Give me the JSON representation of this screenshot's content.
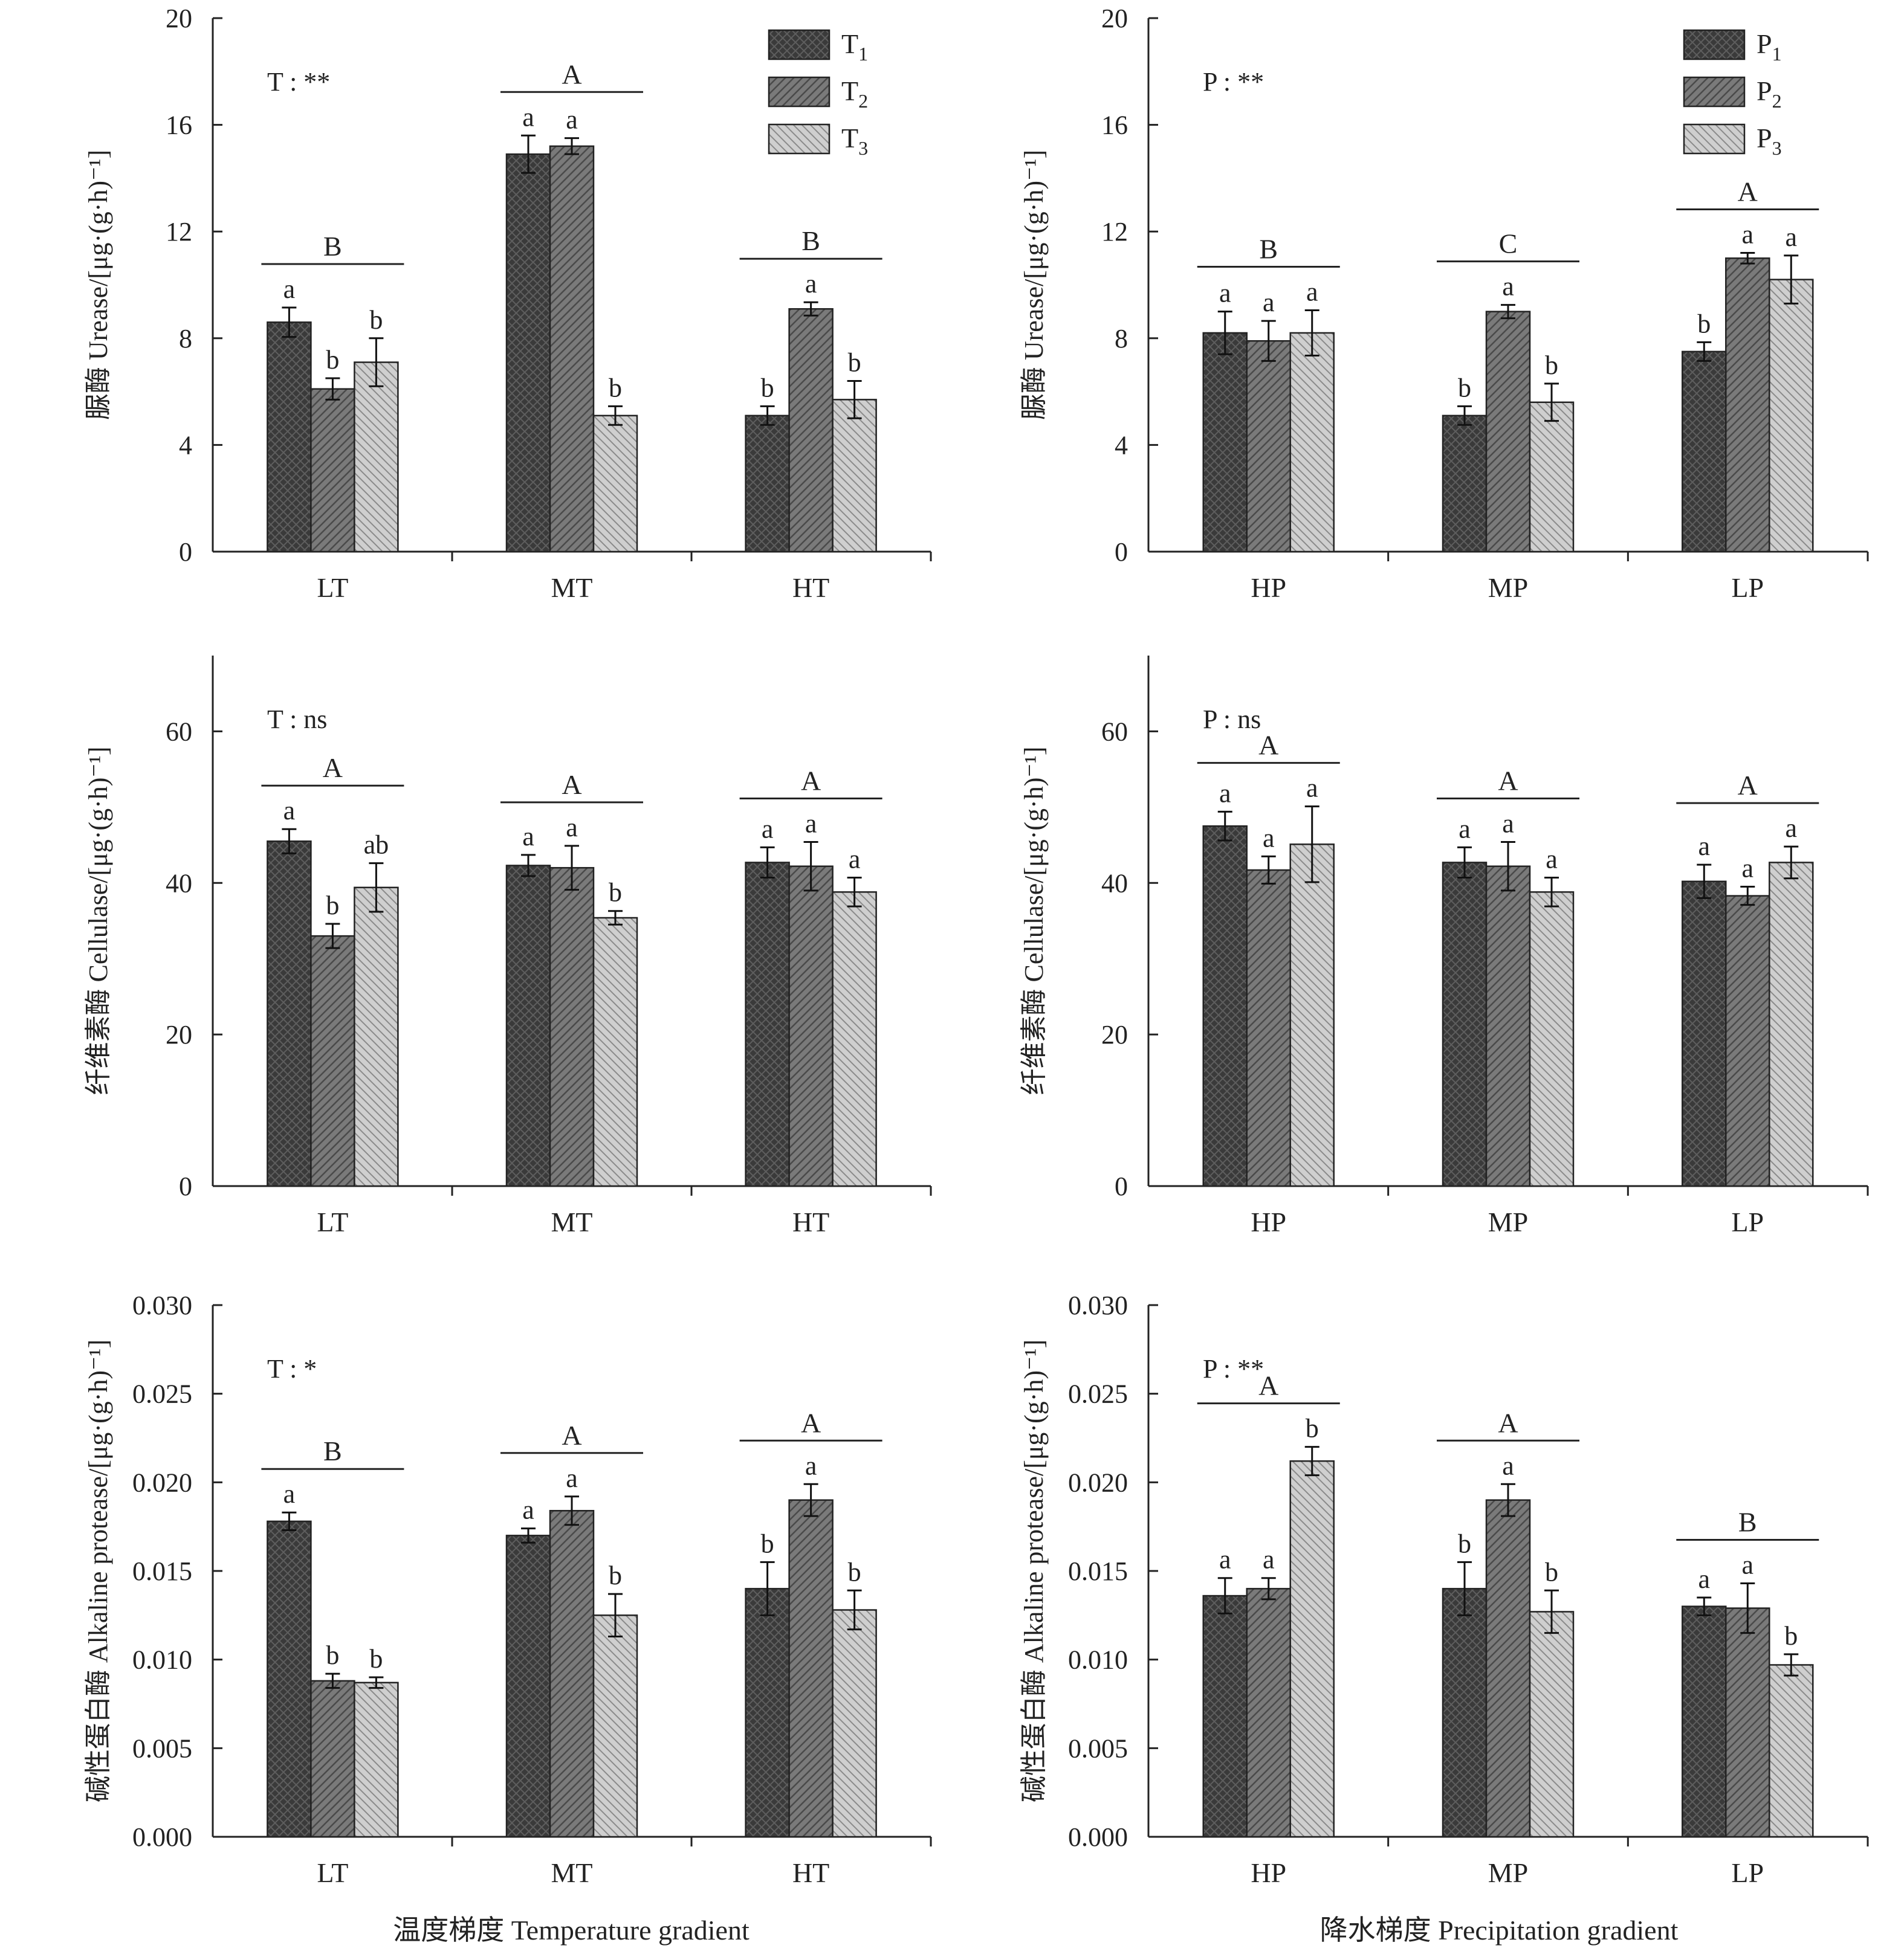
{
  "figure": {
    "xlabels": [
      "温度梯度 Temperature gradient",
      "降水梯度 Precipitation gradient"
    ]
  },
  "legends": {
    "temperature": [
      {
        "base": "T",
        "sub": "1"
      },
      {
        "base": "T",
        "sub": "2"
      },
      {
        "base": "T",
        "sub": "3"
      }
    ],
    "precipitation": [
      {
        "base": "P",
        "sub": "1"
      },
      {
        "base": "P",
        "sub": "2"
      },
      {
        "base": "P",
        "sub": "3"
      }
    ]
  },
  "styles": {
    "series_colors": [
      "#3a3a3a",
      "#7a7a7a",
      "#c9c9c9"
    ],
    "hatch": [
      "crosshatch",
      "diagonal",
      "diagonal-light"
    ],
    "axis_color": "#222222"
  },
  "chart_data": [
    {
      "type": "bar",
      "panel": "a",
      "ylabel": "脲酶 Urease/[μg·(g·h)⁻¹]",
      "ylim": [
        0,
        20
      ],
      "yticks": [
        "0",
        "4",
        "8",
        "12",
        "16",
        "20"
      ],
      "annotation": "T : **",
      "categories": [
        "LT",
        "MT",
        "HT"
      ],
      "series": [
        {
          "name": "T1",
          "values": [
            8.6,
            14.9,
            5.1
          ],
          "errors": [
            0.55,
            0.7,
            0.35
          ]
        },
        {
          "name": "T2",
          "values": [
            6.1,
            15.2,
            9.1
          ],
          "errors": [
            0.4,
            0.3,
            0.25
          ]
        },
        {
          "name": "T3",
          "values": [
            7.1,
            5.1,
            5.7
          ],
          "errors": [
            0.9,
            0.35,
            0.7
          ]
        }
      ],
      "letters": [
        [
          "a",
          "b",
          "b"
        ],
        [
          "a",
          "a",
          "b"
        ],
        [
          "b",
          "a",
          "b"
        ]
      ],
      "group_letters": [
        "B",
        "A",
        "B"
      ]
    },
    {
      "type": "bar",
      "panel": "b",
      "ylabel": "脲酶 Urease/[μg·(g·h)⁻¹]",
      "ylim": [
        0,
        20
      ],
      "yticks": [
        "0",
        "4",
        "8",
        "12",
        "16",
        "20"
      ],
      "annotation": "P : **",
      "categories": [
        "HP",
        "MP",
        "LP"
      ],
      "series": [
        {
          "name": "P1",
          "values": [
            8.2,
            5.1,
            7.5
          ],
          "errors": [
            0.8,
            0.35,
            0.35
          ]
        },
        {
          "name": "P2",
          "values": [
            7.9,
            9.0,
            11.0
          ],
          "errors": [
            0.75,
            0.25,
            0.2
          ]
        },
        {
          "name": "P3",
          "values": [
            8.2,
            5.6,
            10.2
          ],
          "errors": [
            0.85,
            0.7,
            0.9
          ]
        }
      ],
      "letters": [
        [
          "a",
          "a",
          "a"
        ],
        [
          "b",
          "a",
          "b"
        ],
        [
          "b",
          "a",
          "a"
        ]
      ],
      "group_letters": [
        "B",
        "C",
        "A"
      ]
    },
    {
      "type": "bar",
      "panel": "c",
      "ylabel": "纤维素酶 Cellulase/[μg·(g·h)⁻¹]",
      "ylim": [
        0,
        70
      ],
      "yticks": [
        "0",
        "20",
        "40",
        "60"
      ],
      "annotation": "T : ns",
      "categories": [
        "LT",
        "MT",
        "HT"
      ],
      "series": [
        {
          "name": "T1",
          "values": [
            45.5,
            42.3,
            42.7
          ],
          "errors": [
            1.6,
            1.4,
            2.0
          ]
        },
        {
          "name": "T2",
          "values": [
            33.0,
            42.0,
            42.2
          ],
          "errors": [
            1.6,
            2.9,
            3.2
          ]
        },
        {
          "name": "T3",
          "values": [
            39.4,
            35.4,
            38.8
          ],
          "errors": [
            3.2,
            0.9,
            1.9
          ]
        }
      ],
      "letters": [
        [
          "a",
          "b",
          "ab"
        ],
        [
          "a",
          "a",
          "b"
        ],
        [
          "a",
          "a",
          "a"
        ]
      ],
      "group_letters": [
        "A",
        "A",
        "A"
      ]
    },
    {
      "type": "bar",
      "panel": "d",
      "ylabel": "纤维素酶 Cellulase/[μg·(g·h)⁻¹]",
      "ylim": [
        0,
        70
      ],
      "yticks": [
        "0",
        "20",
        "40",
        "60"
      ],
      "annotation": "P : ns",
      "categories": [
        "HP",
        "MP",
        "LP"
      ],
      "series": [
        {
          "name": "P1",
          "values": [
            47.5,
            42.7,
            40.2
          ],
          "errors": [
            1.9,
            2.0,
            2.2
          ]
        },
        {
          "name": "P2",
          "values": [
            41.7,
            42.2,
            38.3
          ],
          "errors": [
            1.8,
            3.2,
            1.2
          ]
        },
        {
          "name": "P3",
          "values": [
            45.1,
            38.8,
            42.7
          ],
          "errors": [
            5.0,
            1.9,
            2.1
          ]
        }
      ],
      "letters": [
        [
          "a",
          "a",
          "a"
        ],
        [
          "a",
          "a",
          "a"
        ],
        [
          "a",
          "a",
          "a"
        ]
      ],
      "group_letters": [
        "A",
        "A",
        "A"
      ]
    },
    {
      "type": "bar",
      "panel": "e",
      "ylabel": "碱性蛋白酶 Alkaline protease/[μg·(g·h)⁻¹]",
      "ylim": [
        0,
        0.03
      ],
      "yticks": [
        "0.000",
        "0.005",
        "0.010",
        "0.015",
        "0.020",
        "0.025",
        "0.030"
      ],
      "annotation": "T : *",
      "categories": [
        "LT",
        "MT",
        "HT"
      ],
      "series": [
        {
          "name": "T1",
          "values": [
            0.0178,
            0.017,
            0.014
          ],
          "errors": [
            0.0005,
            0.0004,
            0.0015
          ]
        },
        {
          "name": "T2",
          "values": [
            0.0088,
            0.0184,
            0.019
          ],
          "errors": [
            0.0004,
            0.0008,
            0.0009
          ]
        },
        {
          "name": "T3",
          "values": [
            0.0087,
            0.0125,
            0.0128
          ],
          "errors": [
            0.0003,
            0.0012,
            0.0011
          ]
        }
      ],
      "letters": [
        [
          "a",
          "b",
          "b"
        ],
        [
          "a",
          "a",
          "b"
        ],
        [
          "b",
          "a",
          "b"
        ]
      ],
      "group_letters": [
        "B",
        "A",
        "A"
      ]
    },
    {
      "type": "bar",
      "panel": "f",
      "ylabel": "碱性蛋白酶 Alkaline protease/[μg·(g·h)⁻¹]",
      "ylim": [
        0,
        0.03
      ],
      "yticks": [
        "0.000",
        "0.005",
        "0.010",
        "0.015",
        "0.020",
        "0.025",
        "0.030"
      ],
      "annotation": "P : **",
      "categories": [
        "HP",
        "MP",
        "LP"
      ],
      "series": [
        {
          "name": "P1",
          "values": [
            0.0136,
            0.014,
            0.013
          ],
          "errors": [
            0.001,
            0.0015,
            0.0005
          ]
        },
        {
          "name": "P2",
          "values": [
            0.014,
            0.019,
            0.0129
          ],
          "errors": [
            0.0006,
            0.0009,
            0.0014
          ]
        },
        {
          "name": "P3",
          "values": [
            0.0212,
            0.0127,
            0.0097
          ],
          "errors": [
            0.0008,
            0.0012,
            0.0006
          ]
        }
      ],
      "letters": [
        [
          "a",
          "a",
          "b"
        ],
        [
          "b",
          "a",
          "b"
        ],
        [
          "a",
          "a",
          "b"
        ]
      ],
      "group_letters": [
        "A",
        "A",
        "B"
      ]
    }
  ]
}
